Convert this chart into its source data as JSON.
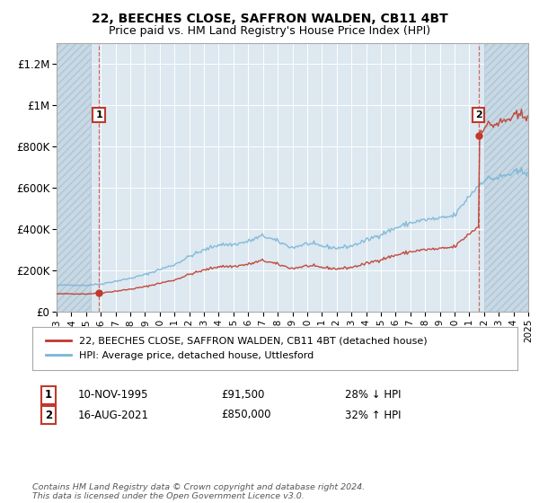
{
  "title": "22, BEECHES CLOSE, SAFFRON WALDEN, CB11 4BT",
  "subtitle": "Price paid vs. HM Land Registry's House Price Index (HPI)",
  "legend_line1": "22, BEECHES CLOSE, SAFFRON WALDEN, CB11 4BT (detached house)",
  "legend_line2": "HPI: Average price, detached house, Uttlesford",
  "annotation1_label": "1",
  "annotation1_date": "10-NOV-1995",
  "annotation1_price": "£91,500",
  "annotation1_hpi": "28% ↓ HPI",
  "annotation2_label": "2",
  "annotation2_date": "16-AUG-2021",
  "annotation2_price": "£850,000",
  "annotation2_hpi": "32% ↑ HPI",
  "footer": "Contains HM Land Registry data © Crown copyright and database right 2024.\nThis data is licensed under the Open Government Licence v3.0.",
  "sale1_year": 1995.87,
  "sale1_price": 91500,
  "sale2_year": 2021.63,
  "sale2_price": 850000,
  "hpi_color": "#7ab5d8",
  "price_color": "#c0392b",
  "sale_dot_color": "#c0392b",
  "background_color": "#dde8f0",
  "hatch_bg_color": "#c8d8e4",
  "ylim": [
    0,
    1300000
  ],
  "xlim_start": 1993,
  "xlim_end": 2025,
  "yticks": [
    0,
    200000,
    400000,
    600000,
    800000,
    1000000,
    1200000
  ],
  "ytick_labels": [
    "£0",
    "£200K",
    "£400K",
    "£600K",
    "£800K",
    "£1M",
    "£1.2M"
  ],
  "xticks": [
    1993,
    1994,
    1995,
    1996,
    1997,
    1998,
    1999,
    2000,
    2001,
    2002,
    2003,
    2004,
    2005,
    2006,
    2007,
    2008,
    2009,
    2010,
    2011,
    2012,
    2013,
    2014,
    2015,
    2016,
    2017,
    2018,
    2019,
    2020,
    2021,
    2022,
    2023,
    2024,
    2025
  ],
  "hatch_left_end": 1995.3,
  "hatch_right_start": 2022.0
}
